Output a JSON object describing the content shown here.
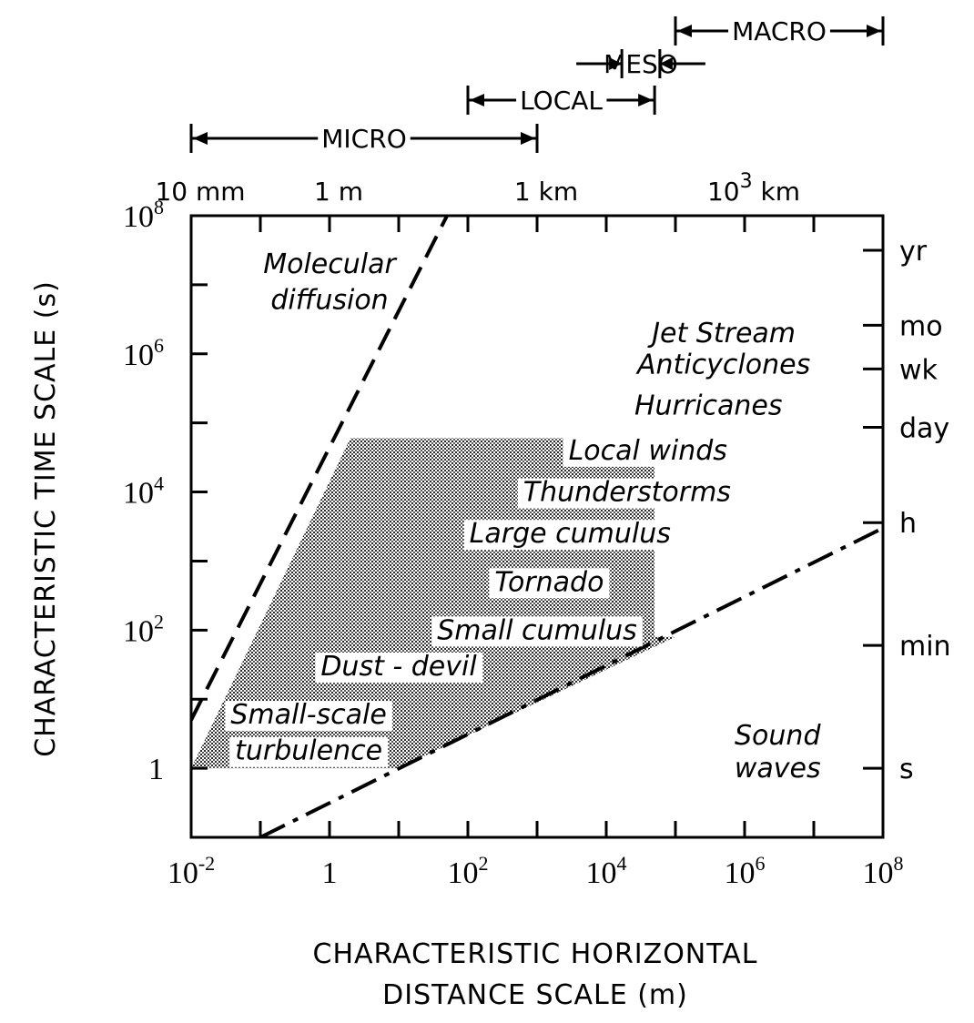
{
  "chart_data": {
    "type": "area",
    "title": "",
    "xlabel_line1": "CHARACTERISTIC HORIZONTAL",
    "xlabel_line2": "DISTANCE SCALE (m)",
    "ylabel": "CHARACTERISTIC TIME SCALE (s)",
    "x_scale": "log",
    "y_scale": "log",
    "xlim": [
      0.01,
      100000000
    ],
    "ylim": [
      0.1,
      100000000
    ],
    "x_ticks": [
      {
        "value": 0.01,
        "base": "10",
        "exp": "-2"
      },
      {
        "value": 1,
        "base": "1",
        "exp": ""
      },
      {
        "value": 100,
        "base": "10",
        "exp": "2"
      },
      {
        "value": 10000,
        "base": "10",
        "exp": "4"
      },
      {
        "value": 1000000,
        "base": "10",
        "exp": "6"
      },
      {
        "value": 100000000,
        "base": "10",
        "exp": "8"
      }
    ],
    "y_ticks": [
      {
        "value": 1,
        "base": "1",
        "exp": ""
      },
      {
        "value": 100,
        "base": "10",
        "exp": "2"
      },
      {
        "value": 10000,
        "base": "10",
        "exp": "4"
      },
      {
        "value": 1000000,
        "base": "10",
        "exp": "6"
      },
      {
        "value": 100000000,
        "base": "10",
        "exp": "8"
      }
    ],
    "top_axis_labels": [
      {
        "value": 0.01,
        "base": "10 mm",
        "exp": ""
      },
      {
        "value": 1,
        "base": "1 m",
        "exp": ""
      },
      {
        "value": 1000,
        "base": "1 km",
        "exp": ""
      },
      {
        "value": 1000000,
        "base": "10",
        "exp": "3",
        "suffix": " km"
      }
    ],
    "right_axis_labels": [
      {
        "value": 31536000,
        "label": "yr"
      },
      {
        "value": 2592000,
        "label": "mo"
      },
      {
        "value": 604800,
        "label": "wk"
      },
      {
        "value": 86400,
        "label": "day"
      },
      {
        "value": 3600,
        "label": "h"
      },
      {
        "value": 60,
        "label": "min"
      },
      {
        "value": 1,
        "label": "s"
      }
    ],
    "scale_ranges": [
      {
        "name": "MICRO",
        "from": 0.01,
        "to": 1000
      },
      {
        "name": "LOCAL",
        "from": 100,
        "to": 50000
      },
      {
        "name": "MESO",
        "from": 5000,
        "to": 200000
      },
      {
        "name": "MACRO",
        "from": 100000,
        "to": 100000000
      }
    ],
    "series": [
      {
        "name": "Molecular diffusion",
        "x": [
          0.01,
          50
        ],
        "y": [
          5,
          100000000
        ],
        "style": "dashed"
      },
      {
        "name": "Sound waves",
        "x": [
          0.1,
          100000000
        ],
        "y": [
          0.1,
          3000
        ],
        "style": "dash-dot"
      }
    ],
    "shaded_region": {
      "x": [
        0.01,
        2,
        50000,
        50000,
        100000,
        10,
        0.01
      ],
      "y": [
        1,
        60000,
        60000,
        80,
        80,
        1,
        1
      ]
    },
    "annotations": [
      {
        "text": "Molecular",
        "x": 1,
        "y": 20000000
      },
      {
        "text": "diffusion",
        "x": 1,
        "y": 6000000
      },
      {
        "text": "Jet Stream",
        "x": 500000,
        "y": 2000000
      },
      {
        "text": "Anticyclones",
        "x": 500000,
        "y": 700000
      },
      {
        "text": "Hurricanes",
        "x": 300000,
        "y": 180000
      },
      {
        "text": "Local winds",
        "x": 40000,
        "y": 40000
      },
      {
        "text": "Thunderstorms",
        "x": 20000,
        "y": 10000
      },
      {
        "text": "Large cumulus",
        "x": 3000,
        "y": 2500
      },
      {
        "text": "Tornado",
        "x": 1500,
        "y": 500
      },
      {
        "text": "Small cumulus",
        "x": 1000,
        "y": 100
      },
      {
        "text": "Dust - devil",
        "x": 10,
        "y": 30
      },
      {
        "text": "Small-scale",
        "x": 0.5,
        "y": 6
      },
      {
        "text": "turbulence",
        "x": 0.5,
        "y": 1.8
      },
      {
        "text": "Sound",
        "x": 3000000,
        "y": 3
      },
      {
        "text": "waves",
        "x": 3000000,
        "y": 1
      }
    ]
  }
}
